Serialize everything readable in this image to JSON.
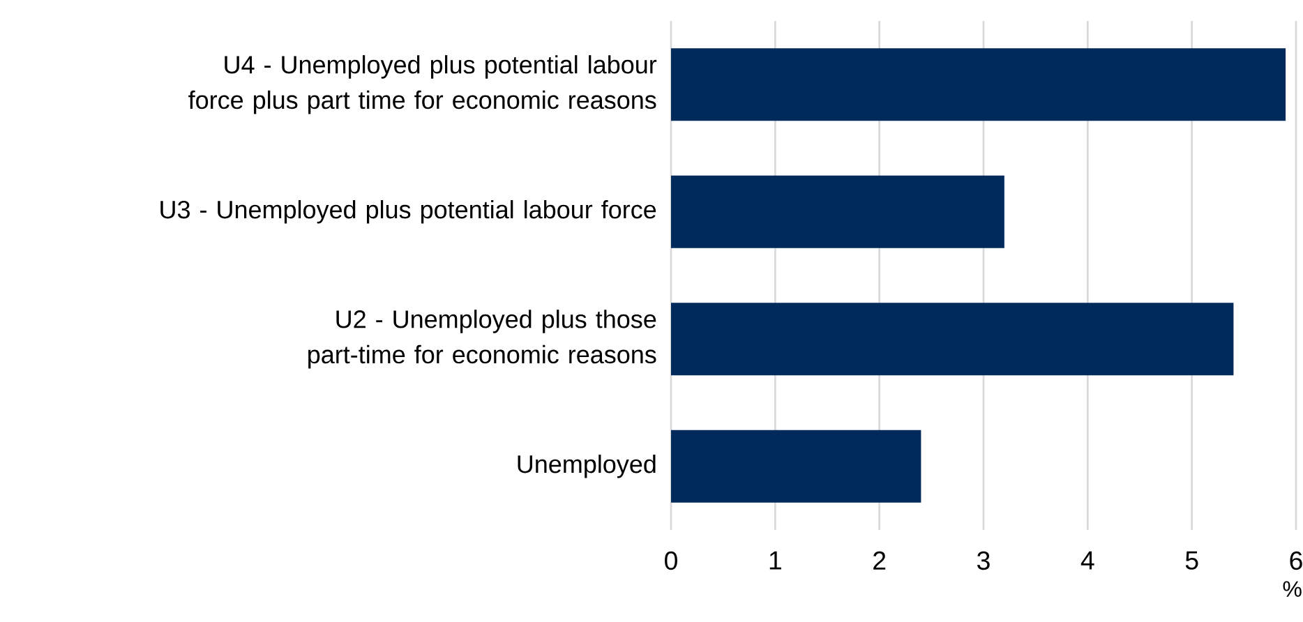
{
  "chart_data": {
    "type": "bar",
    "orientation": "horizontal",
    "categories": [
      "U4 - Unemployed plus potential labour force plus part time for economic reasons",
      "U3 - Unemployed plus potential labour force",
      "U2 - Unemployed plus those part-time for economic reasons",
      "Unemployed"
    ],
    "values": [
      5.9,
      3.2,
      5.4,
      2.4
    ],
    "color": "#002a5c",
    "xlim": [
      0,
      6
    ],
    "xticks": [
      0,
      1,
      2,
      3,
      4,
      5,
      6
    ],
    "xlabel": "%",
    "grid": "x"
  }
}
